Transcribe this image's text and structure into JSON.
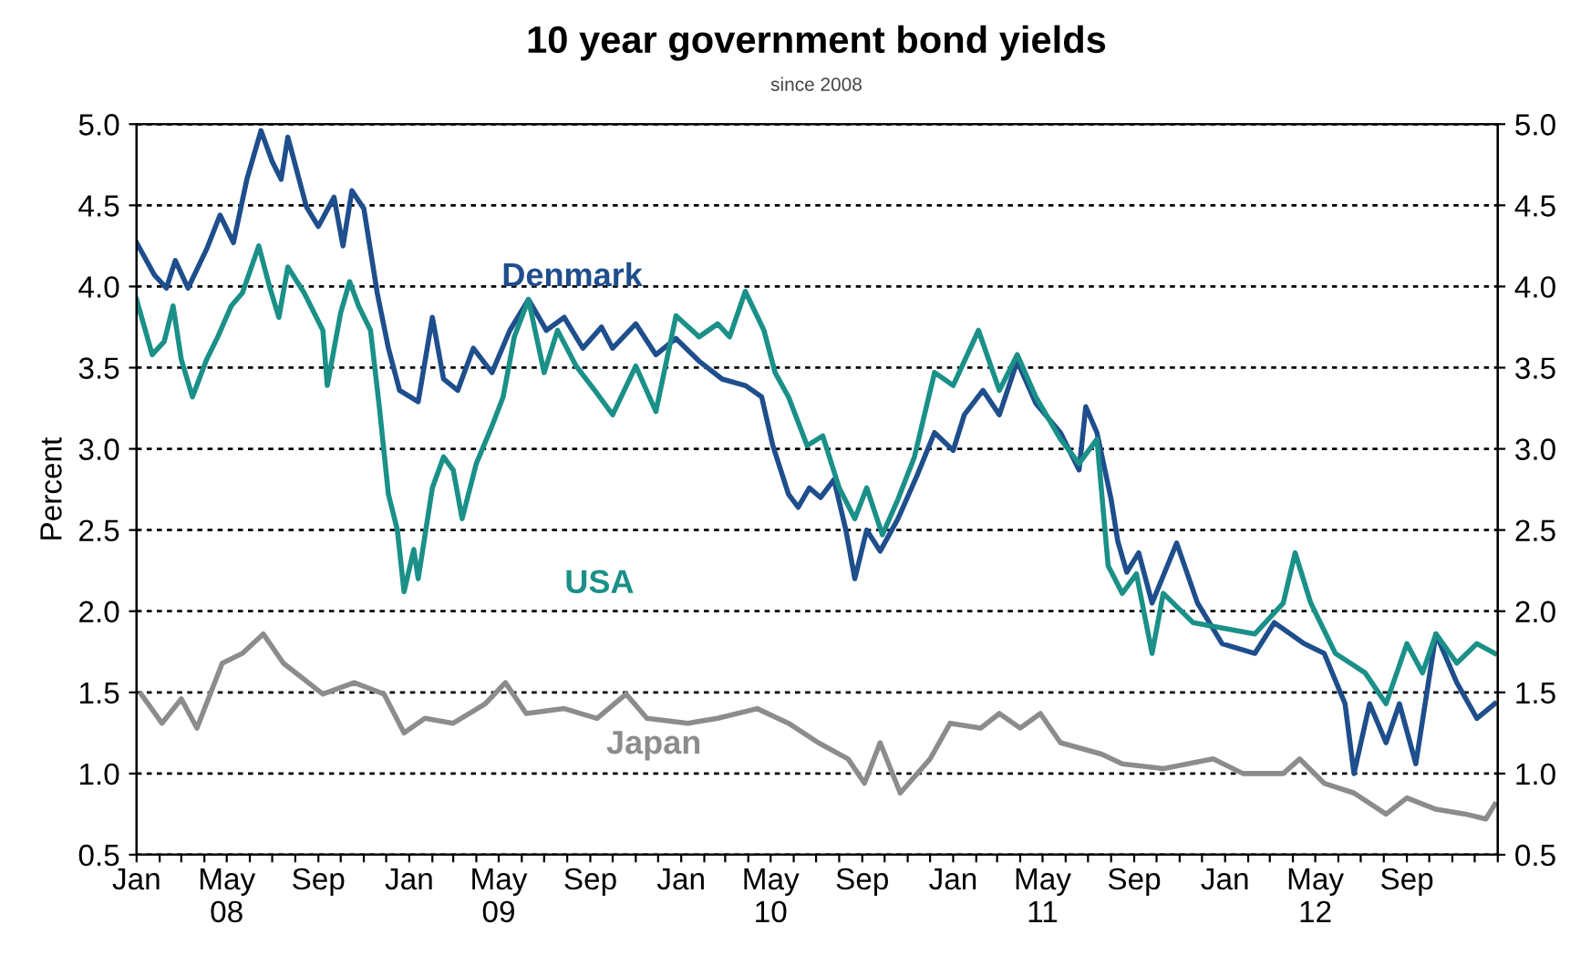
{
  "chart_data": {
    "type": "line",
    "title": "10 year government bond yields",
    "subtitle": "since 2008",
    "ylabel": "Percent",
    "xlim": [
      "2008-01-01",
      "2013-01-01"
    ],
    "ylim": [
      0.5,
      5.0
    ],
    "yticks": [
      0.5,
      {
        "value": 1,
        "label": "1.0"
      },
      1.5,
      {
        "value": 2,
        "label": "2.0"
      },
      2.5,
      {
        "value": 3,
        "label": "3.0"
      },
      3.5,
      {
        "value": 4,
        "label": "4.0"
      },
      4.5,
      {
        "value": 5,
        "label": "5.0"
      }
    ],
    "y2lim": [
      0.5,
      5.0
    ],
    "y2ticks": [
      0.5,
      {
        "value": 1,
        "label": "1.0"
      },
      1.5,
      {
        "value": 2,
        "label": "2.0"
      },
      2.5,
      {
        "value": 3,
        "label": "3.0"
      },
      3.5,
      {
        "value": 4,
        "label": "4.0"
      },
      4.5,
      {
        "value": 5,
        "label": "5.0"
      }
    ],
    "xticks": [
      {
        "value": "2008-01-01",
        "label": "Jan"
      },
      {
        "value": "2008-02-01",
        "label": null
      },
      {
        "value": "2008-03-01",
        "label": null
      },
      {
        "value": "2008-04-01",
        "label": null
      },
      {
        "value": "2008-05-01",
        "label": "May\n08"
      },
      {
        "value": "2008-06-01",
        "label": null
      },
      {
        "value": "2008-07-01",
        "label": null
      },
      {
        "value": "2008-08-01",
        "label": null
      },
      {
        "value": "2008-09-01",
        "label": "Sep"
      },
      {
        "value": "2008-10-01",
        "label": null
      },
      {
        "value": "2008-11-01",
        "label": null
      },
      {
        "value": "2008-12-01",
        "label": null
      },
      {
        "value": "2009-01-01",
        "label": "Jan"
      },
      {
        "value": "2009-02-01",
        "label": null
      },
      {
        "value": "2009-03-01",
        "label": null
      },
      {
        "value": "2009-04-01",
        "label": null
      },
      {
        "value": "2009-05-01",
        "label": "May\n09"
      },
      {
        "value": "2009-06-01",
        "label": null
      },
      {
        "value": "2009-07-01",
        "label": null
      },
      {
        "value": "2009-08-01",
        "label": null
      },
      {
        "value": "2009-09-01",
        "label": "Sep"
      },
      {
        "value": "2009-10-01",
        "label": null
      },
      {
        "value": "2009-11-01",
        "label": null
      },
      {
        "value": "2009-12-01",
        "label": null
      },
      {
        "value": "2010-01-01",
        "label": "Jan"
      },
      {
        "value": "2010-02-01",
        "label": null
      },
      {
        "value": "2010-03-01",
        "label": null
      },
      {
        "value": "2010-04-01",
        "label": null
      },
      {
        "value": "2010-05-01",
        "label": "May\n10"
      },
      {
        "value": "2010-06-01",
        "label": null
      },
      {
        "value": "2010-07-01",
        "label": null
      },
      {
        "value": "2010-08-01",
        "label": null
      },
      {
        "value": "2010-09-01",
        "label": "Sep"
      },
      {
        "value": "2010-10-01",
        "label": null
      },
      {
        "value": "2010-11-01",
        "label": null
      },
      {
        "value": "2010-12-01",
        "label": null
      },
      {
        "value": "2011-01-01",
        "label": "Jan"
      },
      {
        "value": "2011-02-01",
        "label": null
      },
      {
        "value": "2011-03-01",
        "label": null
      },
      {
        "value": "2011-04-01",
        "label": null
      },
      {
        "value": "2011-05-01",
        "label": "May\n11"
      },
      {
        "value": "2011-06-01",
        "label": null
      },
      {
        "value": "2011-07-01",
        "label": null
      },
      {
        "value": "2011-08-01",
        "label": null
      },
      {
        "value": "2011-09-01",
        "label": "Sep"
      },
      {
        "value": "2011-10-01",
        "label": null
      },
      {
        "value": "2011-11-01",
        "label": null
      },
      {
        "value": "2011-12-01",
        "label": null
      },
      {
        "value": "2012-01-01",
        "label": "Jan"
      },
      {
        "value": "2012-02-01",
        "label": null
      },
      {
        "value": "2012-03-01",
        "label": null
      },
      {
        "value": "2012-04-01",
        "label": null
      },
      {
        "value": "2012-05-01",
        "label": "May\n12"
      },
      {
        "value": "2012-06-01",
        "label": null
      },
      {
        "value": "2012-07-01",
        "label": null
      },
      {
        "value": "2012-08-01",
        "label": null
      },
      {
        "value": "2012-09-01",
        "label": "Sep"
      },
      {
        "value": "2012-10-01",
        "label": null
      },
      {
        "value": "2012-11-01",
        "label": null
      },
      {
        "value": "2012-12-01",
        "label": null
      },
      {
        "value": "2013-01-01",
        "label": null
      }
    ],
    "grid": "y",
    "legend": false,
    "line_style": "solid",
    "series": [
      {
        "name": "Denmark",
        "color": "#1f4e8c",
        "x": [
          "2008-01-01",
          "2008-01-25",
          "2008-02-10",
          "2008-02-22",
          "2008-03-10",
          "2008-04-04",
          "2008-04-22",
          "2008-05-10",
          "2008-05-28",
          "2008-06-16",
          "2008-07-01",
          "2008-07-13",
          "2008-07-22",
          "2008-08-16",
          "2008-09-01",
          "2008-09-22",
          "2008-10-04",
          "2008-10-16",
          "2008-11-01",
          "2008-11-19",
          "2008-12-04",
          "2008-12-19",
          "2009-01-13",
          "2009-02-01",
          "2009-02-16",
          "2009-03-07",
          "2009-03-28",
          "2009-04-22",
          "2009-05-16",
          "2009-06-10",
          "2009-07-04",
          "2009-07-28",
          "2009-08-22",
          "2009-09-16",
          "2009-10-01",
          "2009-11-01",
          "2009-11-28",
          "2009-12-25",
          "2010-01-25",
          "2010-02-25",
          "2010-03-28",
          "2010-04-19",
          "2010-05-04",
          "2010-05-25",
          "2010-06-07",
          "2010-06-22",
          "2010-07-07",
          "2010-07-25",
          "2010-08-10",
          "2010-08-22",
          "2010-09-07",
          "2010-09-25",
          "2010-10-19",
          "2010-11-13",
          "2010-12-07",
          "2011-01-01",
          "2011-01-16",
          "2011-02-10",
          "2011-03-04",
          "2011-03-28",
          "2011-04-22",
          "2011-05-25",
          "2011-06-19",
          "2011-06-28",
          "2011-07-13",
          "2011-08-01",
          "2011-08-10",
          "2011-08-22",
          "2011-09-07",
          "2011-09-25",
          "2011-10-28",
          "2011-11-25",
          "2011-12-28",
          "2012-02-10",
          "2012-03-07",
          "2012-04-16",
          "2012-05-13",
          "2012-06-10",
          "2012-06-22",
          "2012-07-13",
          "2012-08-04",
          "2012-08-22",
          "2012-09-13",
          "2012-10-10",
          "2012-11-07",
          "2012-12-04",
          "2012-12-28"
        ],
        "values": [
          4.27,
          4.07,
          3.99,
          4.16,
          3.99,
          4.23,
          4.44,
          4.27,
          4.66,
          4.96,
          4.77,
          4.66,
          4.92,
          4.49,
          4.37,
          4.55,
          4.25,
          4.59,
          4.48,
          3.96,
          3.62,
          3.36,
          3.29,
          3.81,
          3.43,
          3.36,
          3.62,
          3.47,
          3.73,
          3.92,
          3.73,
          3.81,
          3.62,
          3.75,
          3.62,
          3.77,
          3.58,
          3.68,
          3.54,
          3.43,
          3.39,
          3.32,
          3.02,
          2.72,
          2.64,
          2.76,
          2.7,
          2.81,
          2.5,
          2.2,
          2.5,
          2.37,
          2.57,
          2.83,
          3.1,
          2.99,
          3.21,
          3.36,
          3.21,
          3.54,
          3.28,
          3.1,
          2.87,
          3.26,
          3.1,
          2.69,
          2.43,
          2.24,
          2.36,
          2.05,
          2.42,
          2.05,
          1.8,
          1.74,
          1.93,
          1.8,
          1.74,
          1.43,
          1.0,
          1.43,
          1.19,
          1.43,
          1.06,
          1.86,
          1.56,
          1.34,
          1.43
        ]
      },
      {
        "name": "USA",
        "color": "#1a9088",
        "x": [
          "2008-01-01",
          "2008-01-22",
          "2008-02-07",
          "2008-02-19",
          "2008-03-01",
          "2008-03-16",
          "2008-04-04",
          "2008-04-19",
          "2008-05-07",
          "2008-05-22",
          "2008-06-13",
          "2008-06-28",
          "2008-07-10",
          "2008-07-22",
          "2008-08-13",
          "2008-09-07",
          "2008-09-13",
          "2008-10-01",
          "2008-10-13",
          "2008-10-25",
          "2008-11-10",
          "2008-11-22",
          "2008-12-04",
          "2008-12-16",
          "2008-12-25",
          "2009-01-07",
          "2009-01-13",
          "2009-02-01",
          "2009-02-16",
          "2009-03-01",
          "2009-03-13",
          "2009-04-01",
          "2009-04-22",
          "2009-05-07",
          "2009-05-22",
          "2009-06-10",
          "2009-07-01",
          "2009-07-19",
          "2009-08-13",
          "2009-09-07",
          "2009-10-01",
          "2009-11-01",
          "2009-11-28",
          "2009-12-25",
          "2010-01-25",
          "2010-02-19",
          "2010-03-07",
          "2010-03-28",
          "2010-04-22",
          "2010-05-07",
          "2010-05-25",
          "2010-06-19",
          "2010-07-10",
          "2010-08-01",
          "2010-08-22",
          "2010-09-07",
          "2010-09-28",
          "2010-10-19",
          "2010-11-10",
          "2010-12-07",
          "2011-01-01",
          "2011-02-04",
          "2011-03-04",
          "2011-03-28",
          "2011-04-22",
          "2011-05-25",
          "2011-06-19",
          "2011-07-13",
          "2011-07-28",
          "2011-08-16",
          "2011-09-04",
          "2011-09-25",
          "2011-10-10",
          "2011-11-19",
          "2012-02-10",
          "2012-03-19",
          "2012-04-04",
          "2012-04-25",
          "2012-05-28",
          "2012-07-07",
          "2012-08-04",
          "2012-09-01",
          "2012-09-22",
          "2012-10-10",
          "2012-11-07",
          "2012-12-04",
          "2012-12-28"
        ],
        "values": [
          3.92,
          3.58,
          3.66,
          3.88,
          3.55,
          3.32,
          3.55,
          3.69,
          3.88,
          3.96,
          4.25,
          3.99,
          3.81,
          4.12,
          3.96,
          3.73,
          3.39,
          3.84,
          4.03,
          3.88,
          3.73,
          3.25,
          2.72,
          2.5,
          2.12,
          2.38,
          2.2,
          2.76,
          2.95,
          2.87,
          2.57,
          2.91,
          3.14,
          3.32,
          3.69,
          3.92,
          3.47,
          3.73,
          3.51,
          3.36,
          3.21,
          3.51,
          3.23,
          3.82,
          3.69,
          3.77,
          3.69,
          3.97,
          3.73,
          3.47,
          3.32,
          3.02,
          3.08,
          2.76,
          2.57,
          2.76,
          2.47,
          2.69,
          2.95,
          3.47,
          3.39,
          3.73,
          3.36,
          3.58,
          3.32,
          3.06,
          2.91,
          3.06,
          2.28,
          2.11,
          2.23,
          1.74,
          2.11,
          1.93,
          1.86,
          2.05,
          2.36,
          2.05,
          1.74,
          1.62,
          1.43,
          1.8,
          1.62,
          1.86,
          1.68,
          1.8,
          1.74
        ]
      },
      {
        "name": "Japan",
        "color": "#8c8c8c",
        "x": [
          "2008-01-07",
          "2008-02-04",
          "2008-03-01",
          "2008-03-22",
          "2008-04-25",
          "2008-05-22",
          "2008-06-19",
          "2008-07-16",
          "2008-09-07",
          "2008-10-19",
          "2008-11-28",
          "2008-12-25",
          "2009-01-22",
          "2009-03-01",
          "2009-04-13",
          "2009-05-10",
          "2009-06-07",
          "2009-07-28",
          "2009-09-10",
          "2009-10-19",
          "2009-11-16",
          "2010-01-10",
          "2010-02-19",
          "2010-04-13",
          "2010-05-25",
          "2010-07-04",
          "2010-08-13",
          "2010-09-04",
          "2010-09-25",
          "2010-10-22",
          "2010-12-01",
          "2010-12-28",
          "2011-02-07",
          "2011-03-04",
          "2011-04-01",
          "2011-04-28",
          "2011-05-25",
          "2011-07-19",
          "2011-08-16",
          "2011-10-10",
          "2011-12-16",
          "2012-01-25",
          "2012-03-19",
          "2012-04-10",
          "2012-05-13",
          "2012-06-22",
          "2012-08-04",
          "2012-09-01",
          "2012-10-10",
          "2012-11-19",
          "2012-12-16",
          "2012-12-28"
        ],
        "values": [
          1.49,
          1.31,
          1.46,
          1.28,
          1.68,
          1.74,
          1.86,
          1.68,
          1.49,
          1.56,
          1.49,
          1.25,
          1.34,
          1.31,
          1.43,
          1.56,
          1.37,
          1.4,
          1.34,
          1.49,
          1.34,
          1.31,
          1.34,
          1.4,
          1.31,
          1.19,
          1.09,
          0.94,
          1.19,
          0.88,
          1.09,
          1.31,
          1.28,
          1.37,
          1.28,
          1.37,
          1.19,
          1.12,
          1.06,
          1.03,
          1.09,
          1.0,
          1.0,
          1.09,
          0.94,
          0.88,
          0.75,
          0.85,
          0.78,
          0.75,
          0.72,
          0.81
        ]
      }
    ]
  }
}
